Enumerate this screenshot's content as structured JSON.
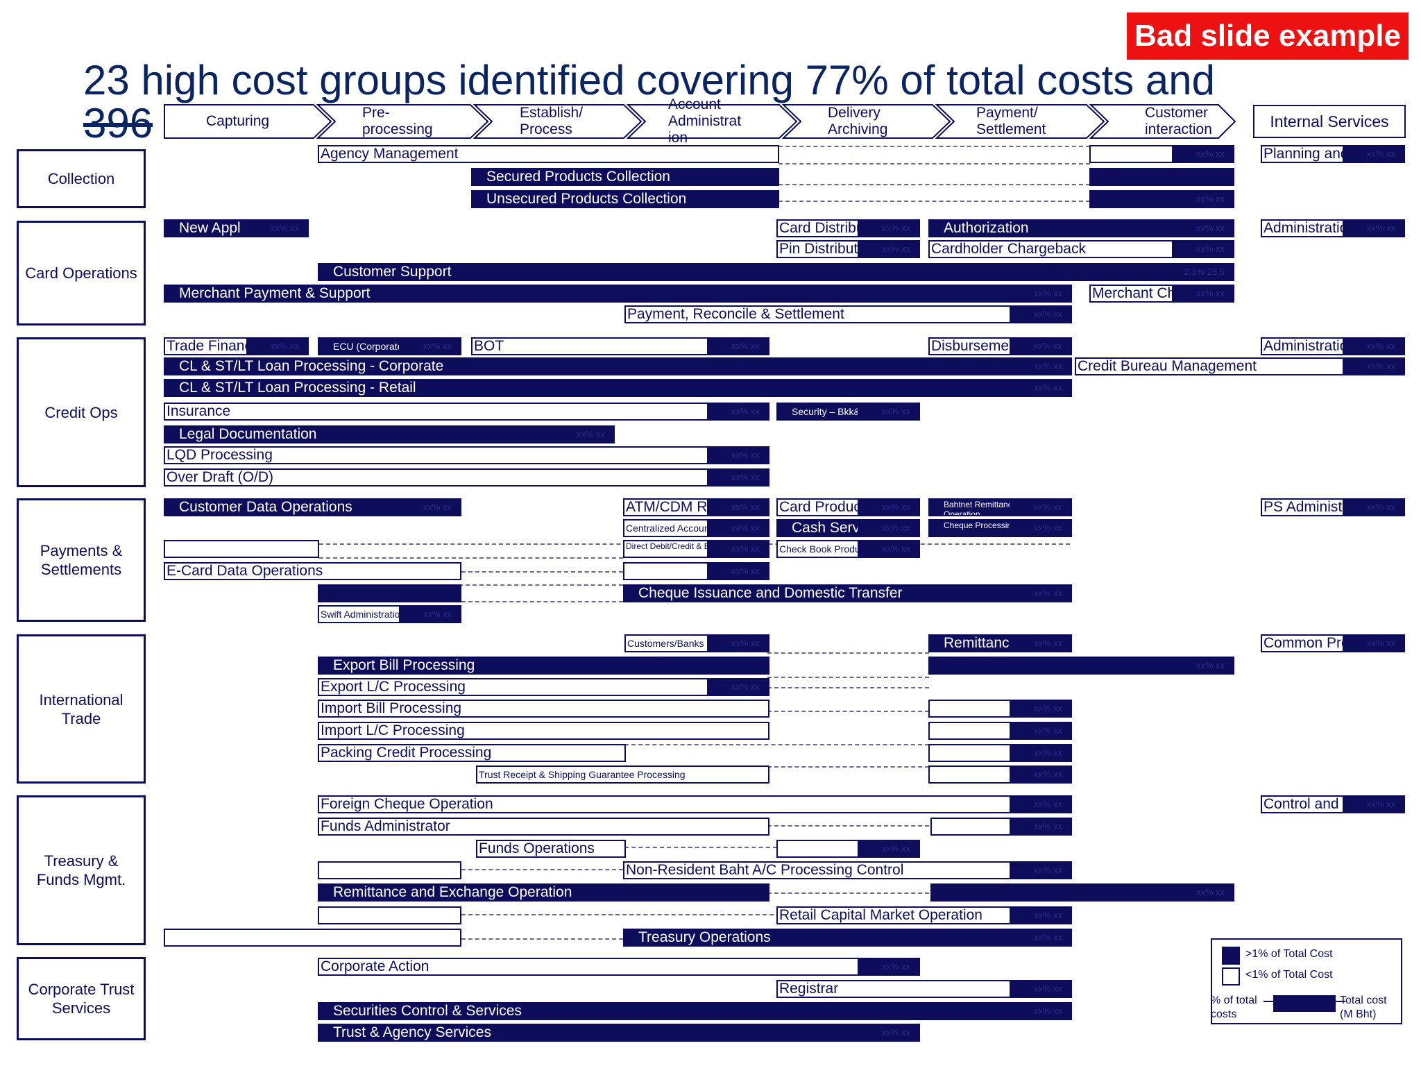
{
  "badge": "Bad slide example",
  "title": "23 high cost groups identified covering 77% of total costs and",
  "title_line2": "396",
  "stages": [
    {
      "label": "Capturing"
    },
    {
      "label": "Pre-\nprocessing"
    },
    {
      "label": "Establish/\nProcess"
    },
    {
      "label": "Account\nAdministrat\nion"
    },
    {
      "label": "Delivery\nArchiving"
    },
    {
      "label": "Payment/\nSettlement"
    },
    {
      "label": "Customer\ninteraction"
    }
  ],
  "internal_services": "Internal Services",
  "departments": [
    {
      "label": "Collection"
    },
    {
      "label": "Card Operations"
    },
    {
      "label": "Credit Ops"
    },
    {
      "label": "Payments &\nSettlements"
    },
    {
      "label": "International\nTrade"
    },
    {
      "label": "Treasury  &\nFunds Mgmt."
    },
    {
      "label": "Corporate Trust\nServices"
    }
  ],
  "groups": [
    {
      "label": "Agency Management",
      "value": ""
    },
    {
      "label": "",
      "value": "xx%   xx"
    },
    {
      "label": "Planning and Controls",
      "value": "xx%   xx"
    },
    {
      "label": "Secured Products Collection",
      "value": ""
    },
    {
      "label": "Unsecured Products Collection",
      "value": ""
    },
    {
      "label": "",
      "value": "xx%   xx"
    },
    {
      "label": "New Appl",
      "value": "xx%   xx"
    },
    {
      "label": "Card Distribution",
      "value": "xx%   xx"
    },
    {
      "label": "Authorization",
      "value": "xx%   xx"
    },
    {
      "label": "Administration",
      "value": "xx%   xx"
    },
    {
      "label": "Pin Distribution",
      "value": "xx%   xx"
    },
    {
      "label": "Cardholder Chargeback",
      "value": "xx%   xx"
    },
    {
      "label": "Customer Support",
      "value": "2.3%  23.5"
    },
    {
      "label": "Merchant Payment & Support",
      "value": "xx%   xx"
    },
    {
      "label": "Merchant Chargeback",
      "value": "xx%   xx"
    },
    {
      "label": "Payment, Reconcile & Settlement",
      "value": "xx%   xx"
    },
    {
      "label": "Trade Finance",
      "value": "xx%   xx"
    },
    {
      "label": "ECU (Corporate)",
      "value": "xx%   xx"
    },
    {
      "label": "BOT",
      "value": "xx%   xx"
    },
    {
      "label": "Disbursement",
      "value": "xx%   xx"
    },
    {
      "label": "Administration",
      "value": "xx%   xx"
    },
    {
      "label": "CL & ST/LT Loan Processing - Corporate",
      "value": "xx%   xx"
    },
    {
      "label": "Credit Bureau Management",
      "value": "xx%   xx"
    },
    {
      "label": "CL & ST/LT Loan Processing - Retail",
      "value": "xx%   xx"
    },
    {
      "label": "Insurance",
      "value": "xx%   xx"
    },
    {
      "label": "Security – Bkk&",
      "value": "xx%   xx"
    },
    {
      "label": "Legal Documentation",
      "value": "xx%   xx"
    },
    {
      "label": "LQD Processing",
      "value": "xx%   xx"
    },
    {
      "label": "Over Draft (O/D)",
      "value": "xx%   xx"
    },
    {
      "label": "Customer Data Operations",
      "value": "xx%   xx"
    },
    {
      "label": "ATM/CDM Related",
      "value": "xx%   xx"
    },
    {
      "label": "Card Production",
      "value": "xx%   xx"
    },
    {
      "label": "Bahtnet Remittance & Smart Operation",
      "value": "xx%   xx"
    },
    {
      "label": "PS Administration",
      "value": "xx%   xx"
    },
    {
      "label": "Centralized Account",
      "value": "xx%   xx"
    },
    {
      "label": "Cash Services",
      "value": "xx%   xx"
    },
    {
      "label": "Cheque Processing & Clearing",
      "value": "xx%   xx"
    },
    {
      "label": "",
      "value": ""
    },
    {
      "label": "Direct Debit/Credit & Bill Payment",
      "value": "xx%   xx"
    },
    {
      "label": "Check Book Production",
      "value": "xx%   xx"
    },
    {
      "label": "E-Card Data Operations",
      "value": ""
    },
    {
      "label": "",
      "value": "xx%   xx"
    },
    {
      "label": "",
      "value": ""
    },
    {
      "label": "Cheque Issuance and Domestic Transfer",
      "value": "xx%   xx"
    },
    {
      "label": "Swift Administration",
      "value": "xx%   xx"
    },
    {
      "label": "Customers/Banks",
      "value": "xx%   xx"
    },
    {
      "label": "Remittance",
      "value": "xx%   xx"
    },
    {
      "label": "Common Process",
      "value": "xx%   xx"
    },
    {
      "label": "Export Bill Processing",
      "value": ""
    },
    {
      "label": "",
      "value": "xx%   xx"
    },
    {
      "label": "Export L/C Processing",
      "value": "xx%   xx"
    },
    {
      "label": "Import Bill Processing",
      "value": ""
    },
    {
      "label": "",
      "value": "xx%   xx"
    },
    {
      "label": "Import L/C Processing",
      "value": ""
    },
    {
      "label": "",
      "value": "xx%   xx"
    },
    {
      "label": "Packing Credit Processing",
      "value": ""
    },
    {
      "label": "",
      "value": "xx%   xx"
    },
    {
      "label": "Trust Receipt & Shipping Guarantee Processing",
      "value": ""
    },
    {
      "label": "",
      "value": "xx%   xx"
    },
    {
      "label": "Foreign Cheque Operation",
      "value": "xx%   xx"
    },
    {
      "label": "Control and MIS",
      "value": "xx%   xx"
    },
    {
      "label": "Funds Administrator",
      "value": ""
    },
    {
      "label": "",
      "value": "xx%   xx"
    },
    {
      "label": "Funds Operations",
      "value": ""
    },
    {
      "label": "",
      "value": "xx%   xx"
    },
    {
      "label": "",
      "value": ""
    },
    {
      "label": "Non-Resident Baht A/C Processing Control",
      "value": "xx%   xx"
    },
    {
      "label": "Remittance and Exchange Operation",
      "value": ""
    },
    {
      "label": "",
      "value": "xx%   xx"
    },
    {
      "label": "",
      "value": ""
    },
    {
      "label": "Retail Capital Market Operation",
      "value": "xx%   xx"
    },
    {
      "label": "",
      "value": ""
    },
    {
      "label": "Treasury Operations",
      "value": "xx%   xx"
    },
    {
      "label": "Corporate Action",
      "value": "xx%   xx"
    },
    {
      "label": "Registrar",
      "value": "xx%   xx"
    },
    {
      "label": "Securities Control & Services",
      "value": "xx%   xx"
    },
    {
      "label": "Trust & Agency Services",
      "value": "xx%   xx"
    }
  ],
  "legend": {
    "high": ">1% of Total Cost",
    "low": "<1% of Total Cost",
    "pct_label": "% of total\ncosts",
    "cost_label": "Total cost\n(M Bht)"
  },
  "colors": {
    "primary": "#0d0d5c",
    "badge": "#ee1111",
    "title": "#0a2463"
  }
}
